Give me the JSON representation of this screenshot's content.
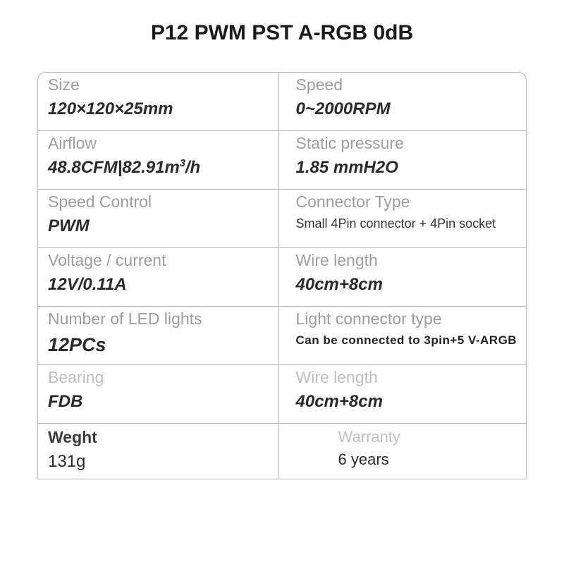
{
  "title": "P12 PWM PST A-RGB 0dB",
  "border_color": "#b5b5b5",
  "label_color": "#9d9d9d",
  "value_color": "#2a2a2a",
  "rows": [
    {
      "left": {
        "label": "Size",
        "value_html": "120×120×25mm"
      },
      "right": {
        "label": "Speed",
        "value_html": "0~2000RPM"
      }
    },
    {
      "left": {
        "label": "Airflow",
        "value_html": "48.8CFM|82.91m<span class='sup'>3</span>/h"
      },
      "right": {
        "label": "Static pressure",
        "value_html": "1.85 mmH2O"
      }
    },
    {
      "left": {
        "label": "Speed Control",
        "value_html": "PWM"
      },
      "right": {
        "label": "Connector Type",
        "value_html": "Small 4Pin connector + 4Pin socket",
        "value_class": "small"
      }
    },
    {
      "left": {
        "label": "Voltage / current",
        "value_html": "12V/0.11A"
      },
      "right": {
        "label": "Wire length",
        "value_html": "40cm+8cm"
      }
    },
    {
      "left": {
        "label": "Number of LED lights",
        "value_html": "12PCs",
        "value_class": "big"
      },
      "right": {
        "label": "Light connector type",
        "value_html": "Can be connected to 3pin+5 V-ARGB",
        "value_class": "small2"
      }
    },
    {
      "left": {
        "label": "Bearing",
        "label_class": "faint",
        "value_html": "FDB"
      },
      "right": {
        "label": "Wire length",
        "label_class": "faint",
        "value_html": "40cm+8cm"
      }
    },
    {
      "left": {
        "label": "Weght",
        "label_class": "dark",
        "value_html": "131g"
      },
      "right": {
        "label": "Warranty",
        "value_html": "6 years"
      },
      "row_class": "last"
    }
  ]
}
